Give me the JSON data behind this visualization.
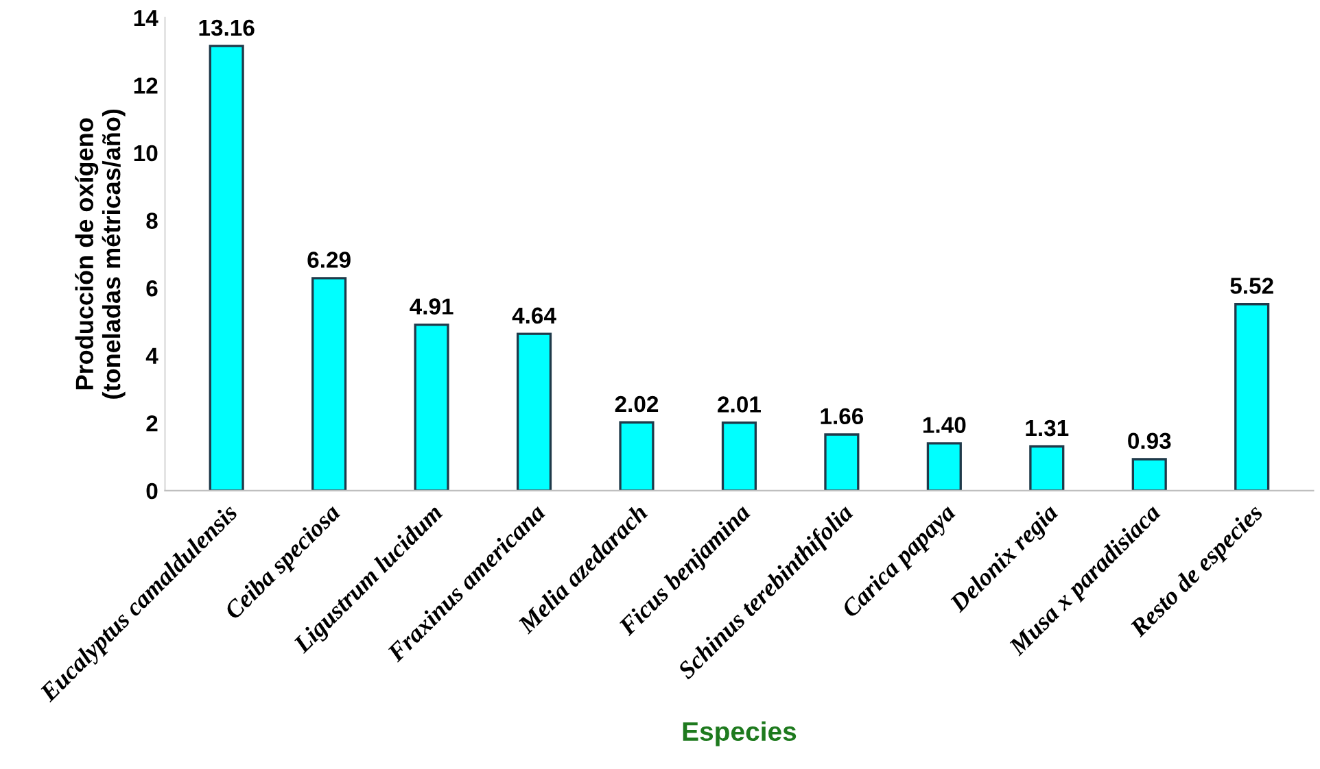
{
  "chart_data": {
    "type": "bar",
    "categories": [
      "Eucalyptus camaldulensis",
      "Ceiba speciosa",
      "Ligustrum lucidum",
      "Fraxinus americana",
      "Melia azedarach",
      "Ficus benjamina",
      "Schinus terebinthifolia",
      "Carica papaya",
      "Delonix regia",
      "Musa x paradisiaca",
      "Resto de especies"
    ],
    "values": [
      13.16,
      6.29,
      4.91,
      4.64,
      2.02,
      2.01,
      1.66,
      1.4,
      1.31,
      0.93,
      5.52
    ],
    "value_labels": [
      "13.16",
      "6.29",
      "4.91",
      "4.64",
      "2.02",
      "2.01",
      "1.66",
      "1.40",
      "1.31",
      "0.93",
      "5.52"
    ],
    "color": "#00ffff",
    "xlabel": "Especies",
    "ylabel": "Producción de oxígeno\n(toneladas métricas/año)",
    "ylim": [
      0,
      14
    ],
    "yticks": [
      0,
      2,
      4,
      6,
      8,
      10,
      12,
      14
    ],
    "grid": false
  }
}
